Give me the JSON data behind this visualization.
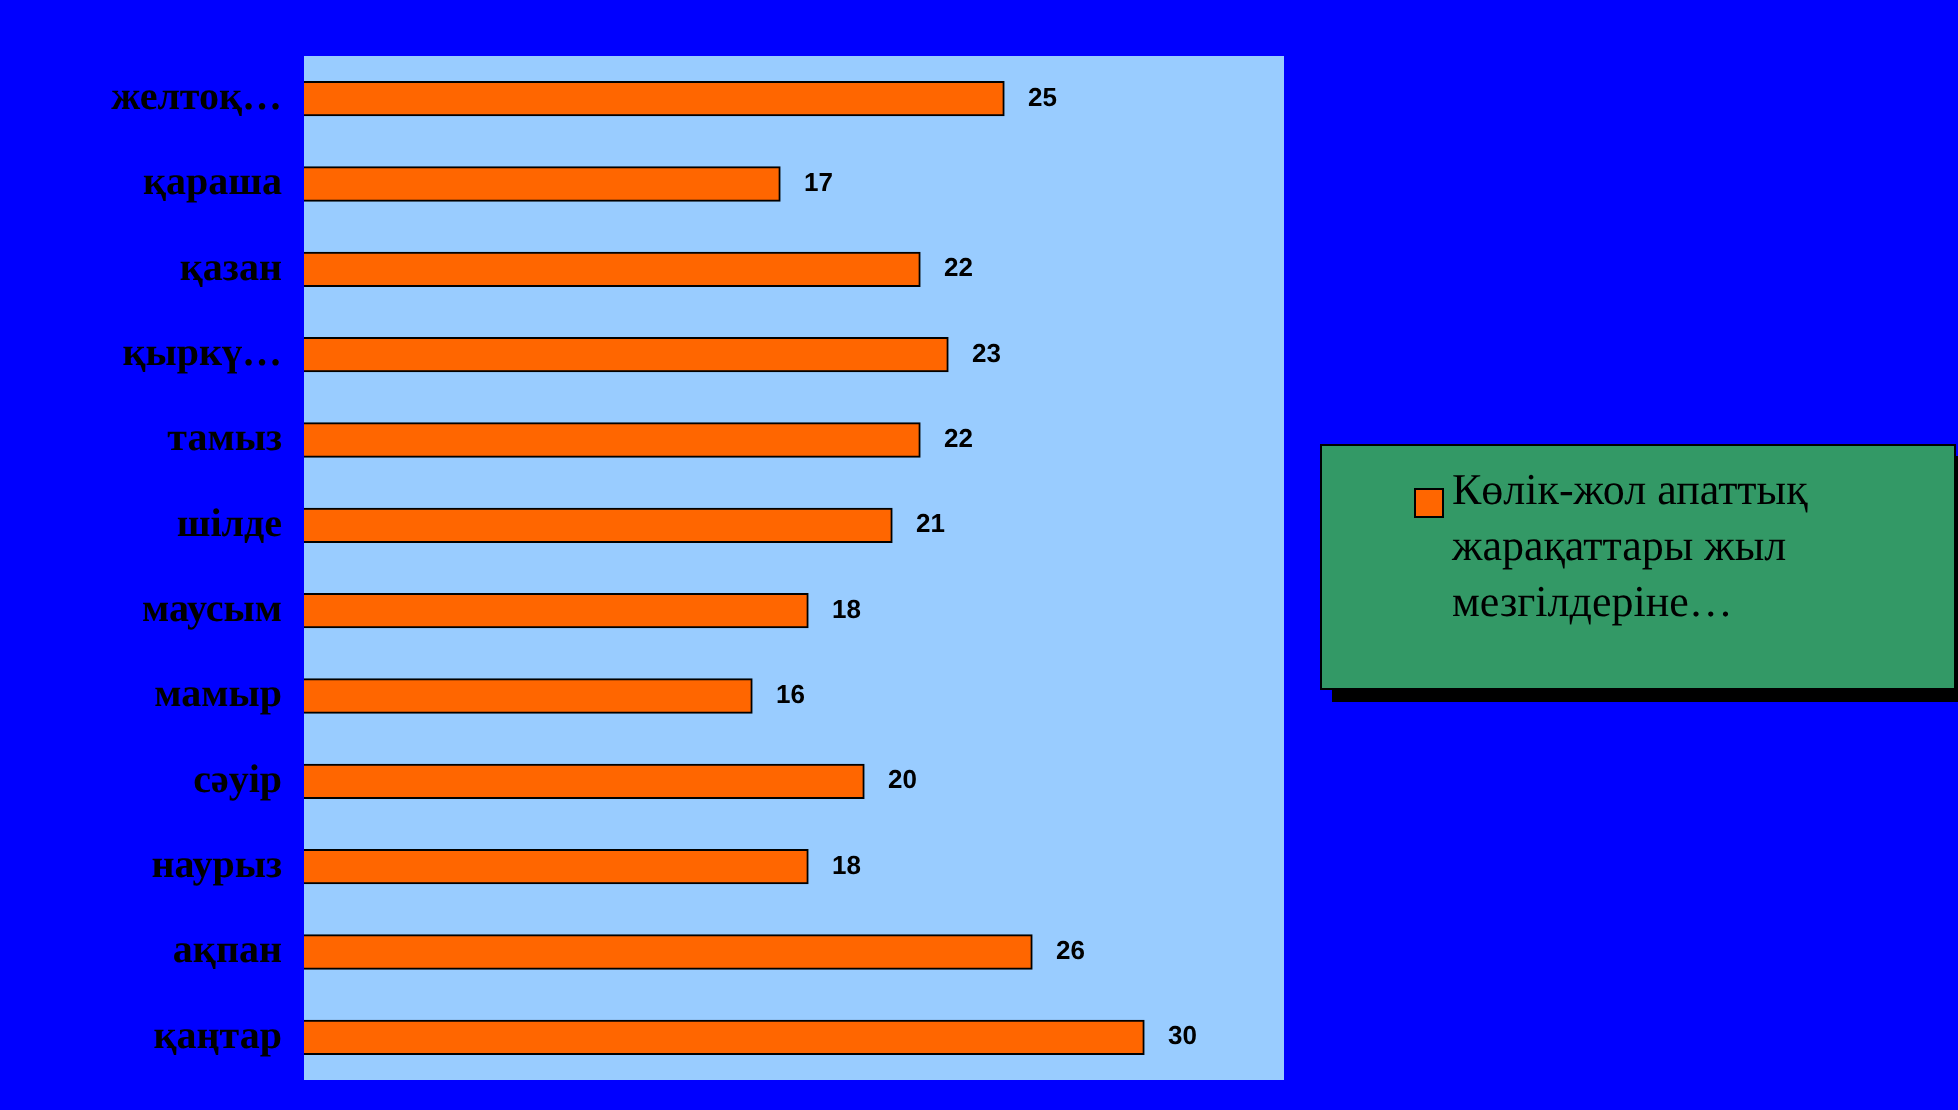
{
  "chart_data": {
    "type": "bar",
    "orientation": "horizontal",
    "categories": [
      "желтоқ…",
      "қараша",
      "қазан",
      "қыркү…",
      "тамыз",
      "шілде",
      "маусым",
      "мамыр",
      "сәуір",
      "наурыз",
      "ақпан",
      "қаңтар"
    ],
    "series": [
      {
        "name": "Көлік-жол апаттық жарақаттары жыл мезгілдеріне…",
        "color": "#ff6600",
        "values": [
          25,
          17,
          22,
          23,
          22,
          21,
          18,
          16,
          20,
          18,
          26,
          30
        ]
      }
    ],
    "xlim": [
      0,
      35
    ],
    "data_labels": true,
    "legend": "right",
    "tick_labels": "y"
  }
}
